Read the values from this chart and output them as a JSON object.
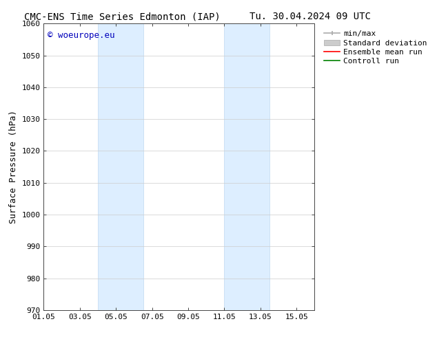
{
  "title_left": "CMC-ENS Time Series Edmonton (IAP)",
  "title_right": "Tu. 30.04.2024 09 UTC",
  "ylabel": "Surface Pressure (hPa)",
  "ylim": [
    970,
    1060
  ],
  "yticks": [
    970,
    980,
    990,
    1000,
    1010,
    1020,
    1030,
    1040,
    1050,
    1060
  ],
  "xlim": [
    0,
    15
  ],
  "xtick_labels": [
    "01.05",
    "03.05",
    "05.05",
    "07.05",
    "09.05",
    "11.05",
    "13.05",
    "15.05"
  ],
  "xtick_positions": [
    0,
    2,
    4,
    6,
    8,
    10,
    12,
    14
  ],
  "shaded_regions": [
    {
      "start": 3,
      "end": 5.5
    },
    {
      "start": 10,
      "end": 12.5
    }
  ],
  "shaded_color": "#ddeeff",
  "shaded_edge_color": "#c0d8f0",
  "watermark": "© woeurope.eu",
  "watermark_color": "#0000bb",
  "bg_color": "#ffffff",
  "grid_color": "#cccccc",
  "spine_color": "#444444",
  "title_fontsize": 10,
  "axis_label_fontsize": 9,
  "tick_fontsize": 8,
  "watermark_fontsize": 9,
  "legend_fontsize": 8
}
